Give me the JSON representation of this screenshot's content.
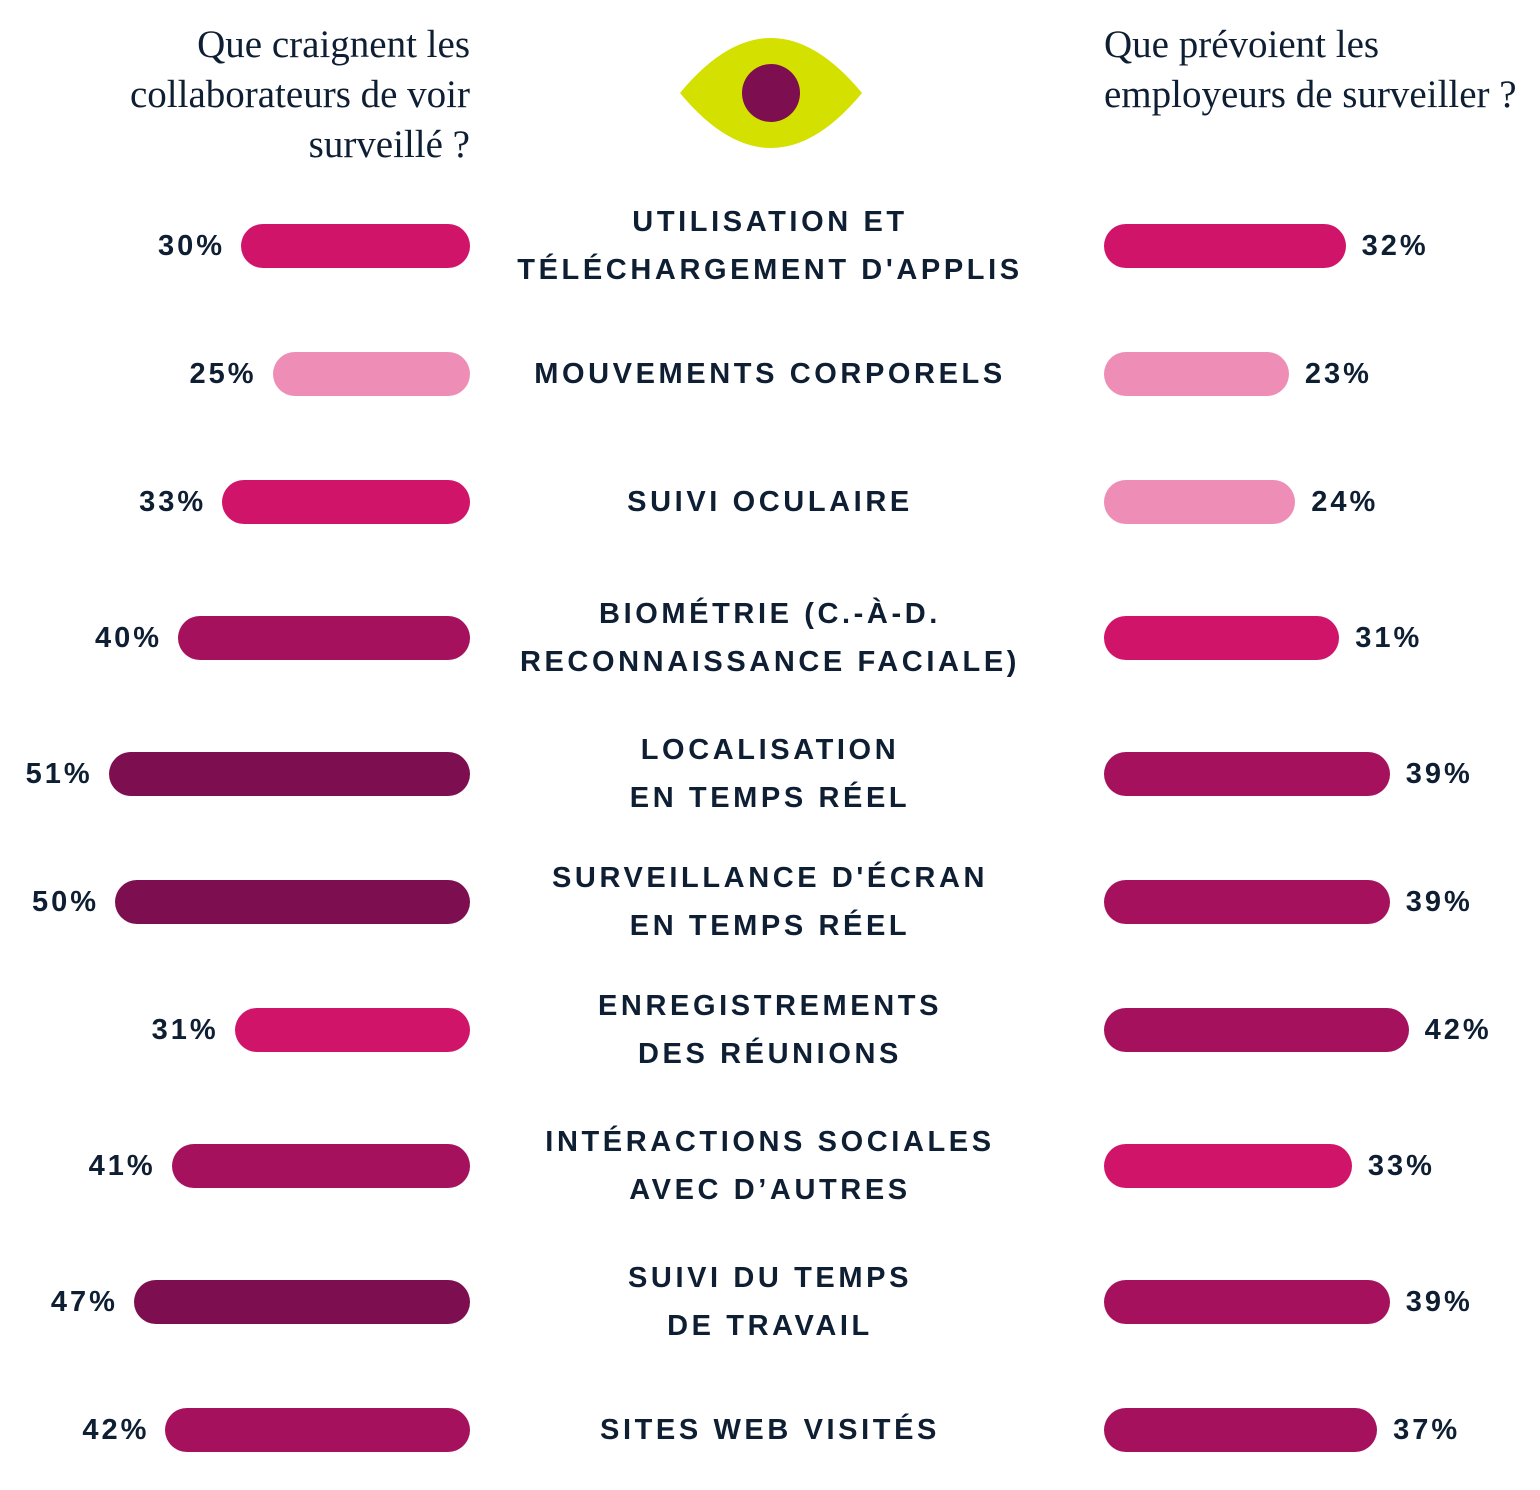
{
  "chart_data": {
    "type": "bar",
    "layout": "butterfly",
    "left_title": "Que craignent les collaborateurs de voir surveillé ?",
    "right_title": "Que prévoient les employeurs de surveiller ?",
    "categories": [
      "UTILISATION ET\nTÉLÉCHARGEMENT D'APPLIS",
      "MOUVEMENTS CORPORELS",
      "SUIVI OCULAIRE",
      "BIOMÉTRIE (C.-À-D.\nRECONNAISSANCE FACIALE)",
      "LOCALISATION\nEN TEMPS RÉEL",
      "SURVEILLANCE D'ÉCRAN\nEN TEMPS RÉEL",
      "ENREGISTREMENTS\nDES RÉUNIONS",
      "INTÉRACTIONS SOCIALES\nAVEC D’AUTRES",
      "SUIVI DU TEMPS\nDE TRAVAIL",
      "SITES WEB VISITÉS"
    ],
    "series": [
      {
        "name": "Que craignent les collaborateurs de voir surveillé ?",
        "side": "left",
        "values": [
          30,
          25,
          33,
          40,
          51,
          50,
          31,
          41,
          47,
          42
        ],
        "labels": [
          "30%",
          "25%",
          "33%",
          "40%",
          "51%",
          "50%",
          "31%",
          "41%",
          "47%",
          "42%"
        ],
        "colors": [
          "#D0146A",
          "#EE8DB6",
          "#D0146A",
          "#A5115C",
          "#7D0E50",
          "#7D0E50",
          "#D0146A",
          "#A5115C",
          "#7D0E50",
          "#A5115C"
        ]
      },
      {
        "name": "Que prévoient les employeurs de surveiller ?",
        "side": "right",
        "values": [
          32,
          23,
          24,
          31,
          39,
          39,
          42,
          33,
          39,
          37
        ],
        "labels": [
          "32%",
          "23%",
          "24%",
          "31%",
          "39%",
          "39%",
          "42%",
          "33%",
          "39%",
          "37%"
        ],
        "colors": [
          "#D0146A",
          "#EE8DB6",
          "#EE8DB6",
          "#D0146A",
          "#A5115C",
          "#A5115C",
          "#A5115C",
          "#D0146A",
          "#A5115C",
          "#A5115C"
        ]
      }
    ],
    "unit": "%",
    "grid": false,
    "legend": "none"
  },
  "icon": {
    "name": "eye-icon",
    "outer_color": "#D4E000",
    "iris_color": "#7D0E50"
  },
  "text_color": "#0E1E33"
}
